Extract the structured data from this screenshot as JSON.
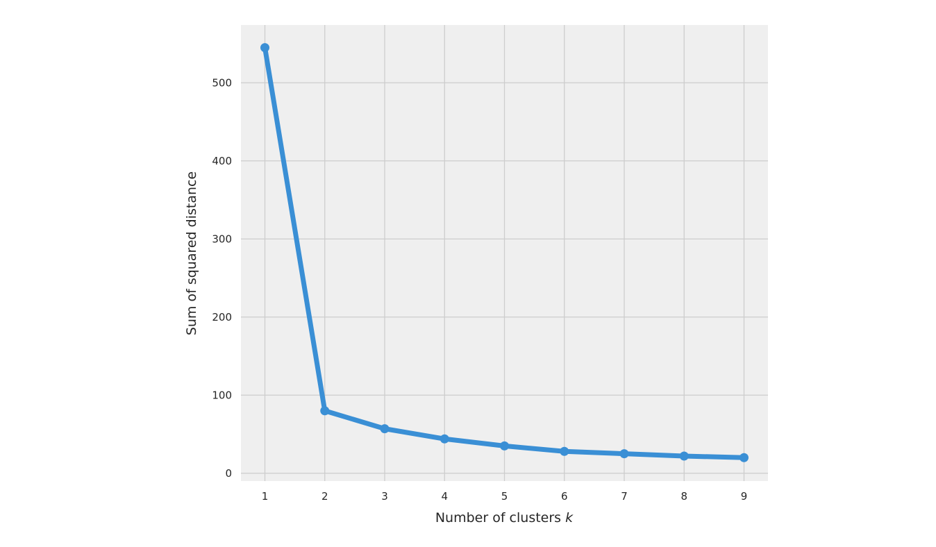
{
  "chart_data": {
    "type": "line",
    "title": "",
    "xlabel": "Number of clusters",
    "xlabel_var": "k",
    "ylabel": "Sum of squared distance",
    "x": [
      1,
      2,
      3,
      4,
      5,
      6,
      7,
      8,
      9
    ],
    "xticks": [
      "1",
      "2",
      "3",
      "4",
      "5",
      "6",
      "7",
      "8",
      "9"
    ],
    "yticks": [
      "0",
      "100",
      "200",
      "300",
      "400",
      "500"
    ],
    "xlim": [
      0.6,
      9.4
    ],
    "ylim": [
      -10,
      574
    ],
    "grid": true,
    "marker": "circle",
    "series": [
      {
        "values": [
          545,
          80,
          57,
          44,
          35,
          28,
          25,
          22,
          20
        ],
        "color": "#3a8fd5"
      }
    ],
    "colors": {
      "plot_background": "#efefef",
      "grid": "#cdcdcd",
      "text": "#262626"
    }
  }
}
